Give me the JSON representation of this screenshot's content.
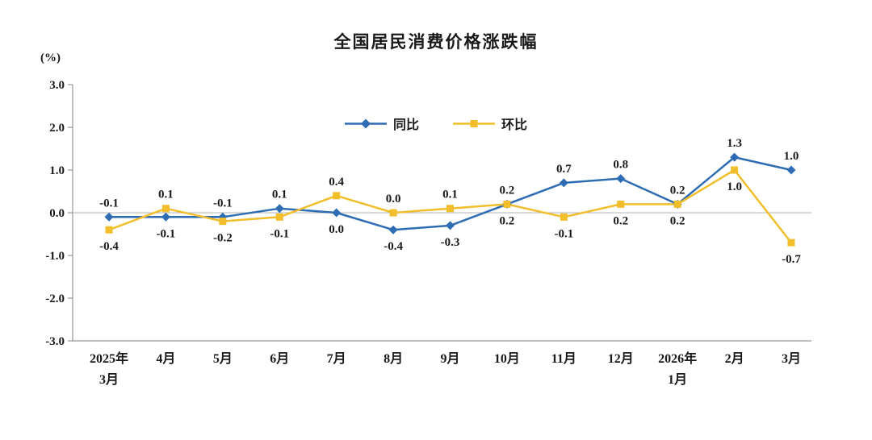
{
  "chart_data": {
    "type": "line",
    "title": "全国居民消费价格涨跌幅",
    "ylabel": "(%)",
    "ylim": [
      -3.0,
      3.0
    ],
    "ytick_step": 1.0,
    "ytick_labels": [
      "3.0",
      "2.0",
      "1.0",
      "0.0",
      "-1.0",
      "-2.0",
      "-3.0"
    ],
    "categories": [
      "2025年\n3月",
      "4月",
      "5月",
      "6月",
      "7月",
      "8月",
      "9月",
      "10月",
      "11月",
      "12月",
      "2026年\n1月",
      "2月",
      "3月"
    ],
    "series": [
      {
        "name": "同比",
        "marker": "diamond",
        "color": "#2E6DB4",
        "values": [
          -0.1,
          -0.1,
          -0.1,
          0.1,
          0.0,
          -0.4,
          -0.3,
          0.2,
          0.7,
          0.8,
          0.2,
          1.3,
          1.0
        ]
      },
      {
        "name": "环比",
        "marker": "square",
        "color": "#F2BE2B",
        "values": [
          -0.4,
          0.1,
          -0.2,
          -0.1,
          0.4,
          0.0,
          0.1,
          0.2,
          -0.1,
          0.2,
          0.2,
          1.0,
          -0.7
        ]
      }
    ],
    "legend_position": "top-center",
    "grid": false,
    "zero_line": true,
    "label_text_color": "#1a1a1a",
    "axis_color": "#808080",
    "zero_line_color": "#b3b3b3"
  }
}
